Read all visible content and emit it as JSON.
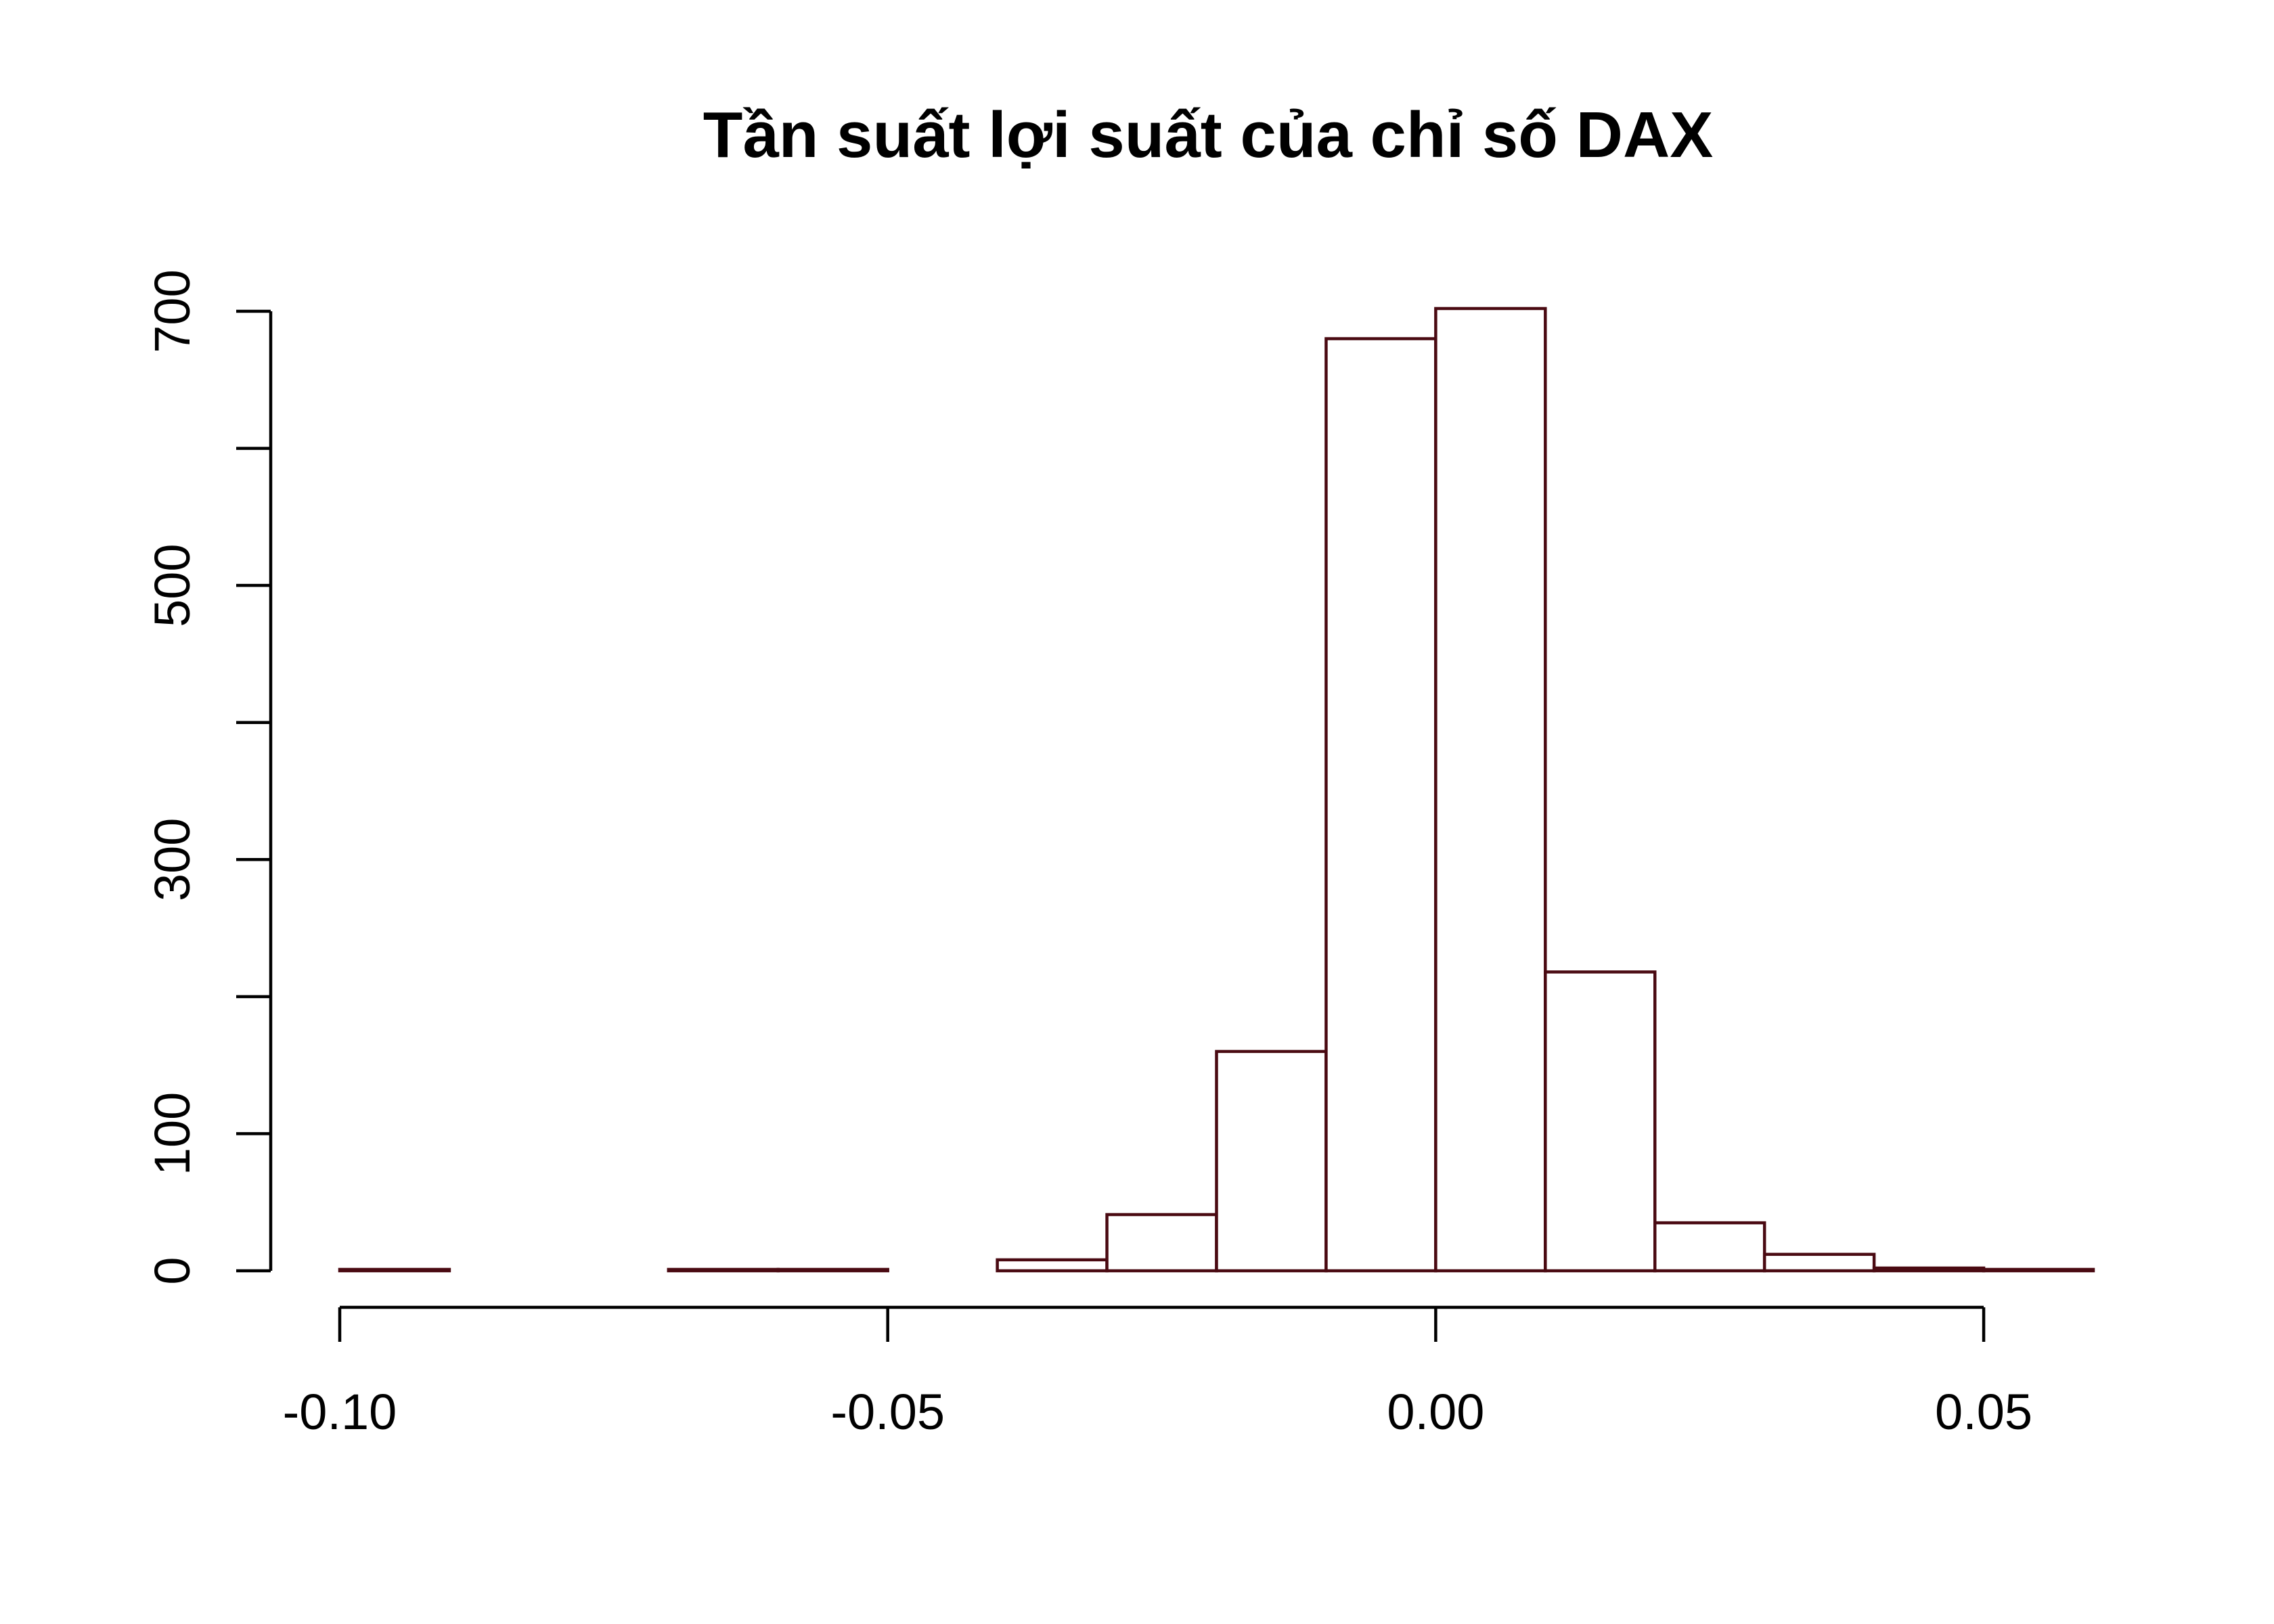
{
  "chart_data": {
    "type": "bar",
    "title": "Tần suất lợi suất của chỉ số DAX",
    "xlabel": "",
    "ylabel": "",
    "xlim": [
      -0.1,
      0.06
    ],
    "ylim": [
      0,
      700
    ],
    "grid": false,
    "bar_stroke_color": "#4a0a12",
    "bar_fill_color": "#ffffff",
    "bins": [
      {
        "x0": -0.1,
        "x1": -0.09,
        "count": 1
      },
      {
        "x0": -0.09,
        "x1": -0.08,
        "count": 0
      },
      {
        "x0": -0.08,
        "x1": -0.07,
        "count": 0
      },
      {
        "x0": -0.07,
        "x1": -0.06,
        "count": 1
      },
      {
        "x0": -0.06,
        "x1": -0.05,
        "count": 1
      },
      {
        "x0": -0.05,
        "x1": -0.04,
        "count": 0
      },
      {
        "x0": -0.04,
        "x1": -0.03,
        "count": 8
      },
      {
        "x0": -0.03,
        "x1": -0.02,
        "count": 41
      },
      {
        "x0": -0.02,
        "x1": -0.01,
        "count": 160
      },
      {
        "x0": -0.01,
        "x1": 0.0,
        "count": 680
      },
      {
        "x0": 0.0,
        "x1": 0.01,
        "count": 702
      },
      {
        "x0": 0.01,
        "x1": 0.02,
        "count": 218
      },
      {
        "x0": 0.02,
        "x1": 0.03,
        "count": 35
      },
      {
        "x0": 0.03,
        "x1": 0.04,
        "count": 12
      },
      {
        "x0": 0.04,
        "x1": 0.05,
        "count": 2
      },
      {
        "x0": 0.05,
        "x1": 0.06,
        "count": 1
      }
    ],
    "x_ticks": [
      {
        "value": -0.1,
        "label": "-0.10"
      },
      {
        "value": -0.05,
        "label": "-0.05"
      },
      {
        "value": 0.0,
        "label": "0.00"
      },
      {
        "value": 0.05,
        "label": "0.05"
      }
    ],
    "y_ticks": [
      0,
      100,
      200,
      300,
      400,
      500,
      600,
      700
    ],
    "y_tick_labels": [
      {
        "value": 0,
        "label": "0"
      },
      {
        "value": 100,
        "label": "100"
      },
      {
        "value": 300,
        "label": "300"
      },
      {
        "value": 500,
        "label": "500"
      },
      {
        "value": 700,
        "label": "700"
      }
    ]
  }
}
